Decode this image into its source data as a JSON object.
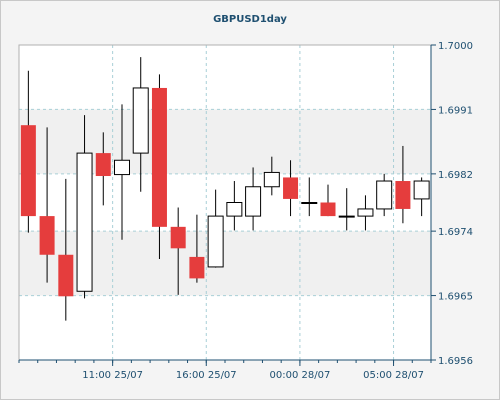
{
  "chart_data": {
    "type": "candlestick",
    "title": "GBPUSD1day",
    "yticks": [
      "1.7000",
      "1.6991",
      "1.6982",
      "1.6974",
      "1.6965",
      "1.6956"
    ],
    "ytick_values": [
      1.7,
      1.6991,
      1.6982,
      1.6974,
      1.6965,
      1.6956
    ],
    "ylim": [
      1.6956,
      1.7
    ],
    "xticks": [
      {
        "label": "11:00 25/07",
        "index": 4.5
      },
      {
        "label": "16:00 25/07",
        "index": 9.5
      },
      {
        "label": "00:00 28/07",
        "index": 14.5
      },
      {
        "label": "05:00 28/07",
        "index": 19.5
      }
    ],
    "grid": true,
    "colors": {
      "up_fill": "#ffffff",
      "down_fill": "#e53d3d",
      "outline": "#000000",
      "grid": "#a9cfd6",
      "text": "#1e4f70",
      "plot_bg": "#ffffff",
      "band_bg": "#f0f0f0"
    },
    "candles": [
      {
        "open": 1.69888,
        "high": 1.69964,
        "low": 1.69738,
        "close": 1.69761
      },
      {
        "open": 1.69761,
        "high": 1.69885,
        "low": 1.69668,
        "close": 1.69707
      },
      {
        "open": 1.69707,
        "high": 1.69813,
        "low": 1.69615,
        "close": 1.69649
      },
      {
        "open": 1.69656,
        "high": 1.69902,
        "low": 1.69646,
        "close": 1.69849
      },
      {
        "open": 1.69849,
        "high": 1.69878,
        "low": 1.69776,
        "close": 1.69817
      },
      {
        "open": 1.69819,
        "high": 1.69917,
        "low": 1.69728,
        "close": 1.69839
      },
      {
        "open": 1.69849,
        "high": 1.69983,
        "low": 1.69795,
        "close": 1.6994
      },
      {
        "open": 1.6994,
        "high": 1.69959,
        "low": 1.69701,
        "close": 1.69746
      },
      {
        "open": 1.69746,
        "high": 1.69773,
        "low": 1.69651,
        "close": 1.69716
      },
      {
        "open": 1.69704,
        "high": 1.69763,
        "low": 1.69668,
        "close": 1.69674
      },
      {
        "open": 1.6969,
        "high": 1.69798,
        "low": 1.69689,
        "close": 1.69761
      },
      {
        "open": 1.69761,
        "high": 1.6981,
        "low": 1.69741,
        "close": 1.6978
      },
      {
        "open": 1.69761,
        "high": 1.69829,
        "low": 1.69741,
        "close": 1.69802
      },
      {
        "open": 1.69802,
        "high": 1.69844,
        "low": 1.6979,
        "close": 1.69822
      },
      {
        "open": 1.69815,
        "high": 1.69839,
        "low": 1.69761,
        "close": 1.69785
      },
      {
        "open": 1.6978,
        "high": 1.69815,
        "low": 1.69761,
        "close": 1.6978
      },
      {
        "open": 1.6978,
        "high": 1.69805,
        "low": 1.69761,
        "close": 1.69761
      },
      {
        "open": 1.69761,
        "high": 1.698,
        "low": 1.69741,
        "close": 1.69761
      },
      {
        "open": 1.69761,
        "high": 1.6979,
        "low": 1.69741,
        "close": 1.69771
      },
      {
        "open": 1.69771,
        "high": 1.6982,
        "low": 1.69761,
        "close": 1.6981
      },
      {
        "open": 1.6981,
        "high": 1.69859,
        "low": 1.69751,
        "close": 1.69771
      },
      {
        "open": 1.69785,
        "high": 1.69815,
        "low": 1.69761,
        "close": 1.6981
      }
    ]
  }
}
